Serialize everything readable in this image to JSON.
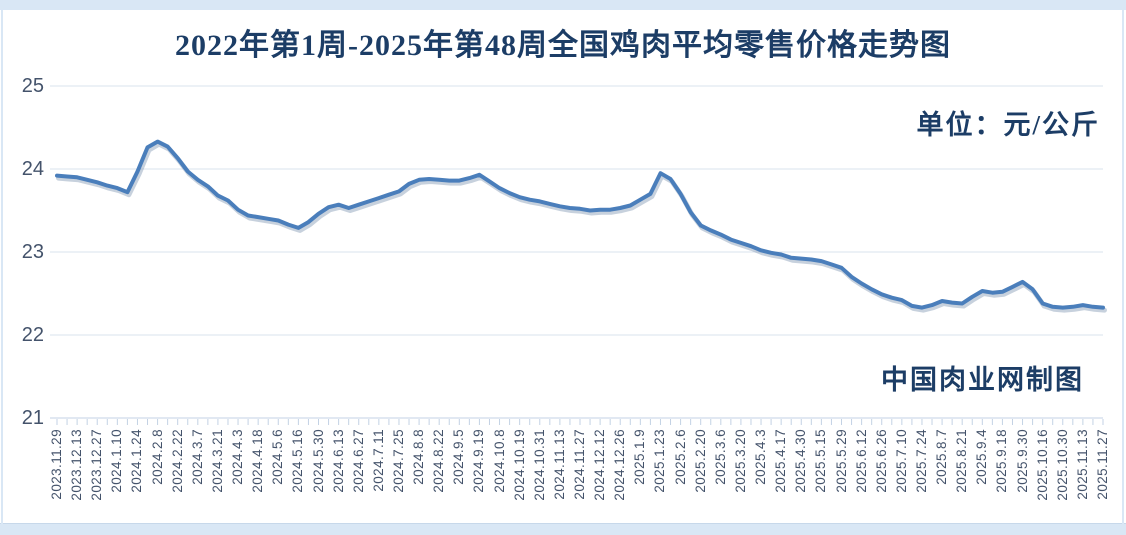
{
  "page": {
    "title": "2022年第1周-2025年第48周全国鸡肉平均零售价格走势图",
    "unit_note": "单位：元/公斤",
    "credit_note": "中国肉业网制图"
  },
  "chart_data": {
    "type": "line",
    "title": "2022年第1周-2025年第48周全国鸡肉平均零售价格走势图",
    "unit_label": "单位：元/公斤",
    "source_label": "中国肉业网制图",
    "xlabel": "",
    "ylabel": "元/公斤",
    "ylim": [
      21,
      25
    ],
    "y_ticks": [
      25,
      24,
      23,
      22,
      21
    ],
    "grid": true,
    "legend": false,
    "line_color": "#4a7ebb",
    "categories": [
      "2023.11.29",
      "2023.12.13",
      "2023.12.27",
      "2024.1.10",
      "2024.1.24",
      "2024.2.8",
      "2024.2.22",
      "2024.3.7",
      "2024.3.21",
      "2024.4.3",
      "2024.4.18",
      "2024.5.6",
      "2024.5.16",
      "2024.5.30",
      "2024.6.13",
      "2024.6.27",
      "2024.7.11",
      "2024.7.25",
      "2024.8.8",
      "2024.8.22",
      "2024.9.5",
      "2024.9.19",
      "2024.10.8",
      "2024.10.19",
      "2024.10.31",
      "2024.11.13",
      "2024.11.27",
      "2024.12.12",
      "2024.12.26",
      "2025.1.9",
      "2025.1.23",
      "2025.2.6",
      "2025.2.20",
      "2025.3.6",
      "2025.3.20",
      "2025.4.3",
      "2025.4.17",
      "2025.4.30",
      "2025.5.15",
      "2025.5.29",
      "2025.6.12",
      "2025.6.26",
      "2025.7.10",
      "2025.7.24",
      "2025.8.7",
      "2025.8.21",
      "2025.9.4",
      "2025.9.18",
      "2025.9.30",
      "2025.10.16",
      "2025.10.30",
      "2025.11.13",
      "2025.11.27"
    ],
    "label_every_n_points": 2,
    "values": [
      23.92,
      23.91,
      23.9,
      23.87,
      23.84,
      23.8,
      23.77,
      23.72,
      23.97,
      24.26,
      24.33,
      24.27,
      24.13,
      23.97,
      23.87,
      23.79,
      23.68,
      23.62,
      23.51,
      23.44,
      23.42,
      23.4,
      23.38,
      23.33,
      23.29,
      23.36,
      23.46,
      23.54,
      23.57,
      23.53,
      23.57,
      23.61,
      23.65,
      23.69,
      23.73,
      23.82,
      23.87,
      23.88,
      23.87,
      23.86,
      23.86,
      23.89,
      23.93,
      23.85,
      23.77,
      23.71,
      23.66,
      23.63,
      23.61,
      23.58,
      23.55,
      23.53,
      23.52,
      23.5,
      23.51,
      23.51,
      23.53,
      23.56,
      23.63,
      23.7,
      23.95,
      23.88,
      23.7,
      23.48,
      23.32,
      23.26,
      23.21,
      23.15,
      23.11,
      23.07,
      23.02,
      22.99,
      22.97,
      22.93,
      22.92,
      22.91,
      22.89,
      22.85,
      22.81,
      22.7,
      22.62,
      22.55,
      22.49,
      22.45,
      22.42,
      22.35,
      22.33,
      22.36,
      22.41,
      22.39,
      22.38,
      22.46,
      22.53,
      22.51,
      22.52,
      22.58,
      22.64,
      22.55,
      22.38,
      22.34,
      22.33,
      22.34,
      22.36,
      22.34,
      22.33
    ],
    "colors": {
      "line": "#4a7ebb",
      "line_shadow": "rgba(109,134,166,0.38)",
      "gridline": "#dae3ee",
      "axis": "#c3d2e4",
      "title_text": "#1c3d66",
      "axis_text": "#44536b",
      "frame_band": "#d9e7f5"
    }
  }
}
